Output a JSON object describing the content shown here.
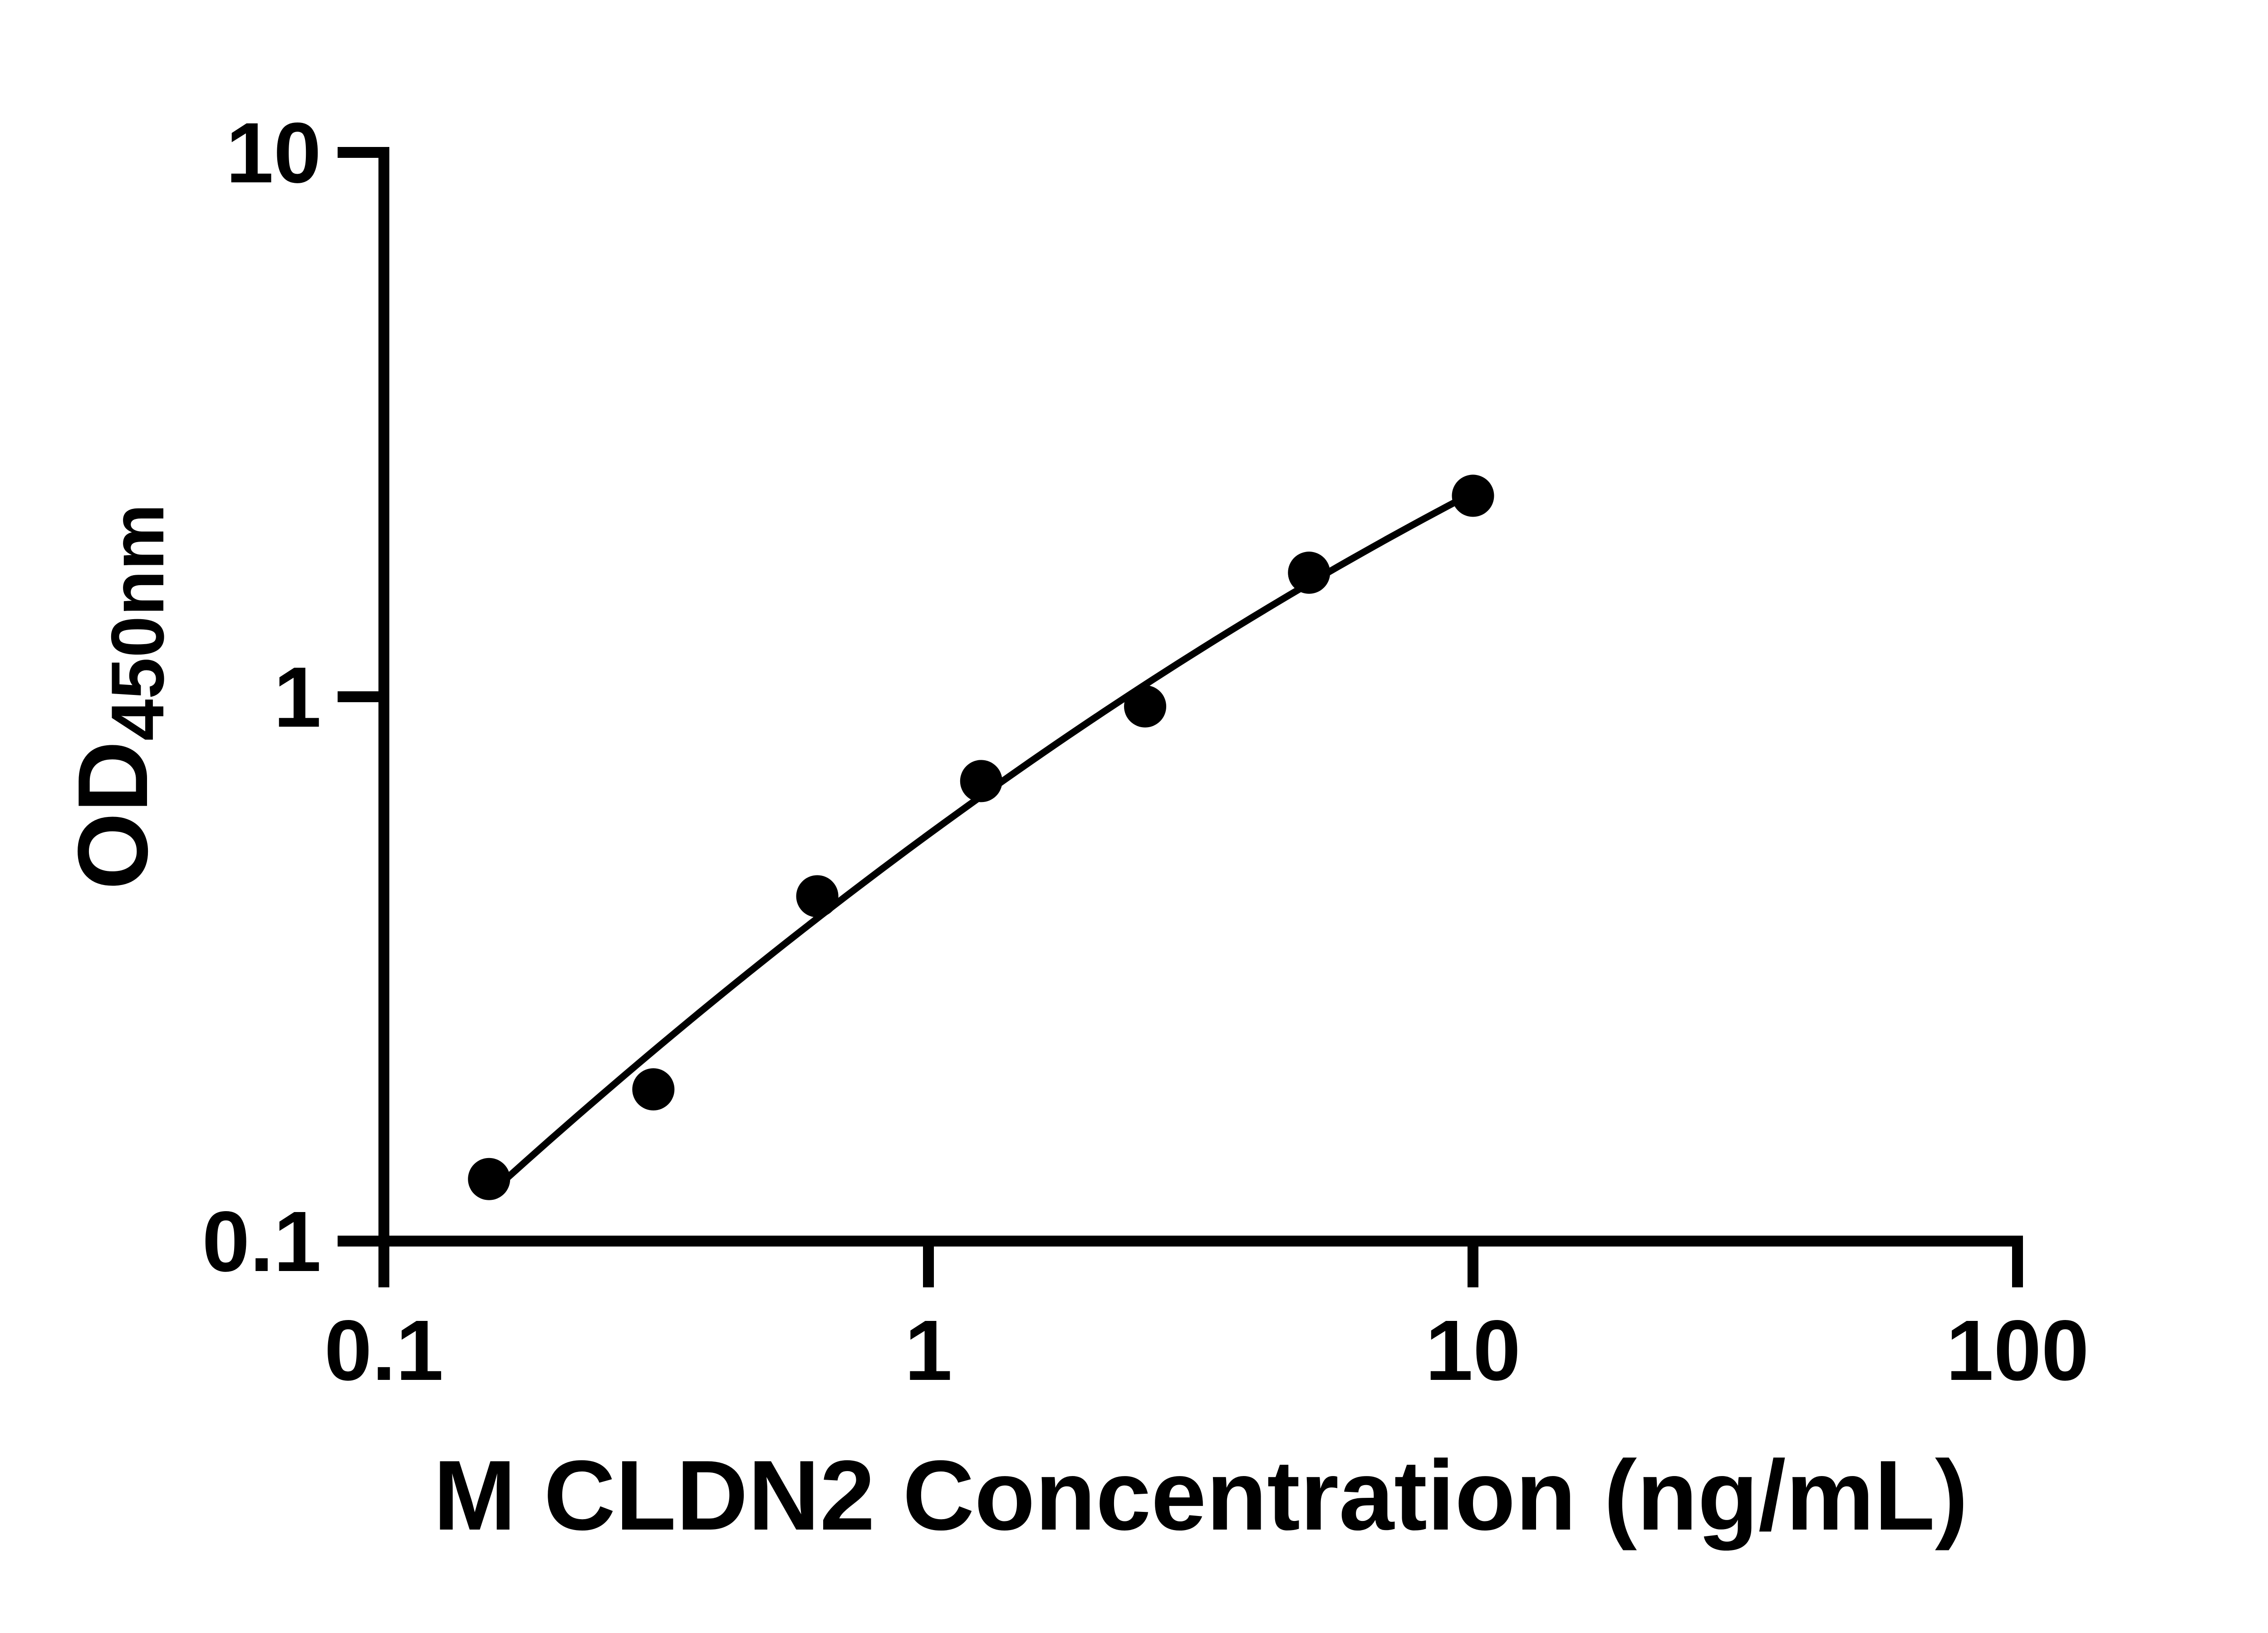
{
  "chart_data": {
    "type": "scatter",
    "title": "",
    "xlabel": "M CLDN2 Concentration (ng/mL)",
    "ylabel_main": "OD",
    "ylabel_sub": "450nm",
    "x_scale": "log",
    "y_scale": "log",
    "xlim": [
      0.1,
      100
    ],
    "ylim": [
      0.1,
      10
    ],
    "x_ticks": [
      {
        "value": 0.1,
        "label": "0.1"
      },
      {
        "value": 1,
        "label": "1"
      },
      {
        "value": 10,
        "label": "10"
      },
      {
        "value": 100,
        "label": "100"
      }
    ],
    "y_ticks": [
      {
        "value": 0.1,
        "label": "0.1"
      },
      {
        "value": 1,
        "label": "1"
      },
      {
        "value": 10,
        "label": "10"
      }
    ],
    "grid": false,
    "legend": false,
    "background_color": "#ffffff",
    "axis_color": "#000000",
    "marker_color": "#000000",
    "line_color": "#000000",
    "series": [
      {
        "x": [
          0.156,
          0.3125,
          0.625,
          1.25,
          2.5,
          5,
          10
        ],
        "y": [
          0.13,
          0.19,
          0.43,
          0.7,
          0.96,
          1.69,
          2.34
        ],
        "marker": "filled-circle",
        "fit_curve": true
      }
    ]
  }
}
